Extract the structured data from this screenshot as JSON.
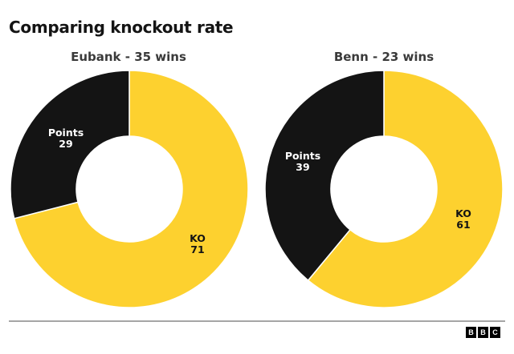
{
  "header": {
    "title": "Comparing knockout rate"
  },
  "charts": [
    {
      "subtitle": "Eubank - 35 wins",
      "slices": [
        {
          "label": "KO",
          "value": "71"
        },
        {
          "label": "Points",
          "value": "29"
        }
      ]
    },
    {
      "subtitle": "Benn - 23 wins",
      "slices": [
        {
          "label": "KO",
          "value": "61"
        },
        {
          "label": "Points",
          "value": "39"
        }
      ]
    }
  ],
  "footer": {
    "logo_letters": [
      "B",
      "B",
      "C"
    ]
  },
  "colors": {
    "ko": "#fdd12f",
    "points": "#141414",
    "divider": "#a6a6a6"
  },
  "chart_data": [
    {
      "type": "pie",
      "title": "Comparing knockout rate",
      "subtitle": "Eubank - 35 wins",
      "categories": [
        "KO",
        "Points"
      ],
      "values": [
        71,
        29
      ],
      "colors": [
        "#fdd12f",
        "#141414"
      ],
      "donut": true,
      "unit": "%"
    },
    {
      "type": "pie",
      "title": "Comparing knockout rate",
      "subtitle": "Benn - 23 wins",
      "categories": [
        "KO",
        "Points"
      ],
      "values": [
        61,
        39
      ],
      "colors": [
        "#fdd12f",
        "#141414"
      ],
      "donut": true,
      "unit": "%"
    }
  ]
}
